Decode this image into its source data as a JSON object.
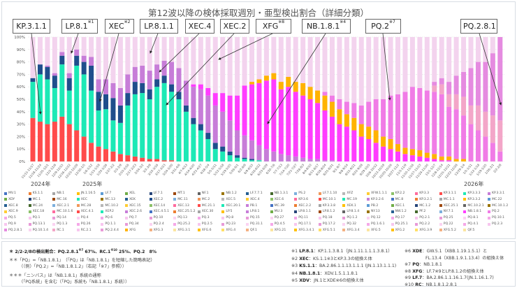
{
  "title": "第12波以降の検体採取週別・亜型検出割合（詳細分類）",
  "callouts": [
    {
      "label": "KP.3.1.1",
      "mark": ""
    },
    {
      "label": "LP.8.1",
      "mark": "※1"
    },
    {
      "label": "XEC",
      "mark": "※2"
    },
    {
      "label": "LP.8.1.1",
      "mark": ""
    },
    {
      "label": "XEC.4",
      "mark": ""
    },
    {
      "label": "XEC.2",
      "mark": ""
    },
    {
      "label": "XFG",
      "mark": "※8"
    },
    {
      "label": "NB.1.8.1",
      "mark": "※4"
    },
    {
      "label": "PQ.2",
      "mark": "※7"
    },
    {
      "label": "PQ.2.8.1",
      "mark": ""
    }
  ],
  "years": [
    "2024年",
    "2025年",
    "2026年"
  ],
  "chart_data": {
    "type": "bar",
    "stacked": true,
    "title": "第12波以降の検体採取週別・亜型検出割合（詳細分類）",
    "ylim": [
      0,
      100
    ],
    "yticks": [
      "0%",
      "10%",
      "20%",
      "30%",
      "40%",
      "50%",
      "60%",
      "70%",
      "80%",
      "90%",
      "100%"
    ],
    "grid": true,
    "legend": "bottom",
    "categories": [
      "11/11-11/17",
      "11/18-11/24",
      "11/25-12/1",
      "12/2-12/8",
      "12/9-12/15",
      "12/16-12/22",
      "12/23-12/29",
      "12/30-1/5",
      "1/6-1/12",
      "1/13-1/19",
      "1/20-1/26",
      "1/27-2/2",
      "2/3-2/9",
      "2/10-2/16",
      "2/17-2/23",
      "2/24-3/2",
      "3/3-3/9",
      "3/10-3/16",
      "3/17-3/23",
      "3/24-3/30",
      "3/31-4/6",
      "4/7-4/13",
      "4/14-4/20",
      "4/21-4/27",
      "4/28-5/4",
      "5/5-5/11",
      "5/12-5/18",
      "5/19-5/25",
      "5/26-6/1",
      "6/2-6/8",
      "6/9-6/15",
      "6/16-6/22",
      "6/23-6/29",
      "6/30-7/6",
      "7/7-7/13",
      "7/14-7/20",
      "7/21-7/27",
      "7/28-8/3",
      "8/4-8/10",
      "8/11-8/17",
      "8/18-8/24",
      "8/25-8/31",
      "9/1-9/7",
      "9/8-9/14",
      "9/15-9/21",
      "9/22-9/28",
      "9/29-10/5",
      "10/6-10/12",
      "10/13-10/19",
      "10/20-10/26",
      "10/27-11/2",
      "11/3-11/9",
      "11/10-11/16",
      "11/17-11/23",
      "11/24-11/30",
      "12/1-12/7",
      "12/8-12/14",
      "12/15-12/21",
      "12/22-12/28",
      "12/29-1/4",
      "1/5-1/11",
      "1/12-1/18",
      "1/19-1/25",
      "1/26-2/1",
      "2/2-2/8"
    ],
    "series": [
      {
        "name": "KP.3.1.1",
        "color": "#ff4b4b",
        "values": [
          35,
          32,
          30,
          32,
          36,
          30,
          25,
          20,
          15,
          12,
          10,
          8,
          6,
          5,
          4,
          3,
          2,
          2,
          1,
          1,
          0,
          0,
          0,
          0,
          0,
          0,
          0,
          0,
          0,
          0,
          0,
          0,
          0,
          0,
          0,
          0,
          0,
          0,
          0,
          0,
          0,
          0,
          0,
          0,
          0,
          0,
          0,
          0,
          0,
          0,
          0,
          0,
          0,
          0,
          0,
          0,
          0,
          0,
          0,
          0,
          0,
          0,
          0,
          0,
          0
        ]
      },
      {
        "name": "XEC",
        "color": "#1de9b6",
        "values": [
          29,
          38,
          36,
          27,
          42,
          27,
          52,
          50,
          42,
          29,
          32,
          25,
          25,
          40,
          50,
          52,
          48,
          58,
          62,
          55,
          50,
          40,
          30,
          25,
          18,
          10,
          8,
          5,
          3,
          2,
          1,
          1,
          0,
          0,
          0,
          0,
          0,
          0,
          0,
          0,
          0,
          0,
          0,
          0,
          0,
          0,
          0,
          0,
          0,
          0,
          0,
          0,
          0,
          0,
          0,
          0,
          0,
          0,
          0,
          0,
          0,
          0,
          0,
          0,
          0
        ]
      },
      {
        "name": "XEC.2",
        "color": "#1f4e8c",
        "values": [
          3,
          8,
          10,
          10,
          7,
          10,
          8,
          10,
          20,
          15,
          12,
          18,
          14,
          10,
          10,
          8,
          8,
          6,
          6,
          6,
          6,
          5,
          5,
          5,
          5,
          5,
          4,
          3,
          2,
          1,
          1,
          0,
          0,
          0,
          0,
          0,
          0,
          0,
          0,
          0,
          0,
          0,
          0,
          0,
          0,
          0,
          0,
          0,
          0,
          0,
          0,
          0,
          0,
          0,
          0,
          0,
          0,
          0,
          0,
          0,
          0,
          0,
          0,
          0,
          0
        ]
      },
      {
        "name": "LP.8.1",
        "color": "#c77dd8",
        "values": [
          0,
          0,
          1,
          2,
          3,
          4,
          5,
          5,
          7,
          10,
          12,
          12,
          14,
          15,
          12,
          14,
          15,
          12,
          12,
          18,
          19,
          20,
          25,
          28,
          30,
          30,
          28,
          25,
          20,
          18,
          15,
          12,
          10,
          8,
          6,
          5,
          4,
          3,
          2,
          2,
          1,
          1,
          0,
          0,
          0,
          0,
          0,
          0,
          0,
          0,
          0,
          0,
          0,
          0,
          0,
          0,
          0,
          0,
          0,
          0,
          0,
          0,
          0,
          0,
          0
        ]
      },
      {
        "name": "NB.1.8.1",
        "color": "#ff3dff",
        "values": [
          0,
          0,
          0,
          0,
          0,
          0,
          0,
          0,
          0,
          0,
          0,
          0,
          0,
          0,
          0,
          0,
          0,
          0,
          0,
          0,
          0,
          0,
          2,
          4,
          6,
          10,
          15,
          20,
          28,
          40,
          45,
          50,
          55,
          58,
          52,
          55,
          52,
          50,
          48,
          45,
          40,
          35,
          30,
          28,
          25,
          20,
          18,
          15,
          12,
          10,
          8,
          6,
          5,
          4,
          3,
          2,
          1,
          1,
          0,
          0,
          0,
          0,
          0,
          0,
          0
        ]
      },
      {
        "name": "XFG",
        "color": "#ffb300",
        "values": [
          0,
          0,
          0,
          0,
          0,
          0,
          0,
          0,
          0,
          0,
          0,
          0,
          0,
          0,
          0,
          0,
          0,
          0,
          0,
          0,
          0,
          0,
          0,
          0,
          0,
          0,
          0,
          0,
          0,
          0,
          2,
          3,
          4,
          5,
          6,
          8,
          8,
          10,
          10,
          10,
          12,
          12,
          12,
          10,
          10,
          10,
          10,
          10,
          8,
          8,
          6,
          5,
          5,
          5,
          4,
          4,
          3,
          3,
          2,
          2,
          0,
          0,
          0,
          0,
          0
        ]
      },
      {
        "name": "PQ.2",
        "color": "#f07ce6",
        "values": [
          0,
          0,
          0,
          0,
          0,
          0,
          0,
          0,
          0,
          0,
          0,
          0,
          0,
          0,
          0,
          0,
          0,
          0,
          0,
          0,
          0,
          0,
          0,
          0,
          0,
          0,
          0,
          0,
          0,
          0,
          0,
          0,
          0,
          0,
          0,
          0,
          0,
          0,
          0,
          0,
          3,
          5,
          8,
          10,
          12,
          15,
          20,
          25,
          30,
          35,
          40,
          45,
          50,
          50,
          50,
          50,
          50,
          40,
          40,
          35,
          30,
          25,
          20,
          15,
          8
        ]
      },
      {
        "name": "RC.1",
        "color": "#f3a6c8",
        "values": [
          0,
          0,
          0,
          0,
          0,
          0,
          0,
          0,
          0,
          0,
          0,
          0,
          0,
          0,
          0,
          0,
          0,
          0,
          0,
          0,
          0,
          0,
          0,
          0,
          0,
          0,
          0,
          0,
          0,
          0,
          0,
          0,
          0,
          0,
          0,
          0,
          0,
          0,
          0,
          0,
          0,
          0,
          0,
          0,
          0,
          0,
          0,
          0,
          0,
          0,
          0,
          0,
          0,
          0,
          0,
          5,
          8,
          10,
          12,
          15,
          15,
          20,
          20,
          22,
          25
        ]
      },
      {
        "name": "PQ.2.8.1",
        "color": "#e58be0",
        "values": [
          0,
          0,
          0,
          0,
          0,
          0,
          0,
          0,
          0,
          0,
          0,
          0,
          0,
          0,
          0,
          0,
          0,
          0,
          0,
          0,
          0,
          0,
          0,
          0,
          0,
          0,
          0,
          0,
          0,
          0,
          0,
          0,
          0,
          0,
          0,
          0,
          0,
          0,
          0,
          0,
          0,
          0,
          0,
          0,
          0,
          0,
          0,
          0,
          0,
          0,
          0,
          0,
          0,
          0,
          0,
          3,
          5,
          10,
          15,
          20,
          30,
          35,
          40,
          50,
          67
        ]
      }
    ],
    "other_color": "#f3d3ee"
  },
  "legend_rows": [
    [
      "MV.1",
      "KS.1.1",
      "NB.1",
      "JN.1.16.5",
      "LF.7",
      "XEL",
      "LF.7.1",
      "MT.1",
      "NF.1",
      "NB.1.2",
      "LF.7.7.1",
      "NB.1.3.1",
      "PS.2",
      "LF.7.1.10",
      "XFZ",
      "XFW.1.1.1",
      "KP.2.2",
      "KP.3.3",
      "KP.3.1.1",
      "KP.3.3.3",
      "KP.3.3.1"
    ],
    [
      "XDY",
      "MC.1",
      "MC.16",
      "XEC",
      "MC.13",
      "XEK",
      "XEC.2",
      "MC.11",
      "MC.2",
      "XEC.5",
      "XEC.4",
      "XEC.6",
      "KP.3.6",
      "MC.10.1",
      "MC.19",
      "KP.3.2.6",
      "MC.8",
      "KP.3.2.1",
      "MC.1.1",
      "KP.3.3.2",
      "MC.22"
    ],
    [
      "XEC.8",
      "MC.24",
      "XEC.2.1",
      "MC.28",
      "MC.10.2",
      "XEC.15",
      "XEC.14",
      "XEC.13",
      "MC.21.1",
      "XEC.20.1",
      "PB.1",
      "MC.39",
      "XEC.2.2",
      "KP.3.3.8",
      "XEK.1",
      "PB.2",
      "XEC.1",
      "MC.1.2",
      "XEC.25.1",
      "MC.10.2.1",
      "MC.10.1.2"
    ],
    [
      "XEC.9",
      "XEC.18",
      "MC.10.1.6",
      "XEC.4.1",
      "XEP.2",
      "XEC.2.6",
      "XEC.4.5.1",
      "XEC.25.1.2",
      "XEC.30",
      "LP.5",
      "LP.8.1",
      "MU.3",
      "LP.8.1.1",
      "LP.8.1.2",
      "LP.8.1.4",
      "NY.13",
      "NW.1.2",
      "PF.2",
      "NY.7.1",
      "NB.1.8.1",
      "PQ.2"
    ],
    [
      "PQ.5",
      "PQ.1",
      "PQ.14",
      "PQ.4",
      "PQ.6",
      "PQ.7",
      "PQ.10",
      "PQ.13",
      "PQ.3",
      "PQ.8",
      "PQ.15",
      "PQ.27",
      "PQ.11",
      "PQ.18",
      "PQ.1.2",
      "PQ.12",
      "PQ.17",
      "PQ.2.1",
      "PQ.25",
      "PQ.8.1",
      "PQ.10.1"
    ],
    [
      "PQ.9",
      "PQ.13.1",
      "PQ.1.3",
      "PQ.26",
      "PQ.1.1",
      "PQ.34",
      "PQ.2.4",
      "PQ.25.2",
      "PQ.2.5",
      "PQ.23",
      "PQ.31.1",
      "PQ.4.5",
      "PQ.17.1",
      "PQ.17.2",
      "PQ.32",
      "PQ.1.6.1",
      "PQ.25.1",
      "PQ.2.2",
      "PQ.22",
      "PQ.4.1",
      "PQ.2.3"
    ],
    [
      "PQ.2.8.1",
      "PQ.10.1.4",
      "RC.1",
      "RC.2.1",
      "PQ.2.4.4",
      "XFG",
      "XFG.3",
      "XFG.3.1",
      "XFG.6",
      "XFG.4",
      "QF.1",
      "XFG.21",
      "XFG.3.4.1",
      "XFG.5.1",
      "XFG.3.4",
      "XFG.5",
      "XFG.2",
      "XFG.3.9",
      "XFG.5.2",
      "QF.5"
    ]
  ],
  "legend_colors": [
    "#4472c4",
    "#ed7d31",
    "#a5a5a5",
    "#ffc000",
    "#5b9bd5",
    "#70ad47",
    "#264478",
    "#9e480e",
    "#636363",
    "#997300",
    "#255e91",
    "#43682b",
    "#7cafdd",
    "#f1975a",
    "#b7b7b7",
    "#ffcd33",
    "#8cc168",
    "#ff6b9e",
    "#ff4b4b",
    "#1de9b6",
    "#c77dd8"
  ],
  "notes_left": {
    "n1_pre": "＊ 2/2-2/8の検出割合：",
    "n1_a": "PQ.2.8.1",
    "n1_a_mark": "※7",
    "n1_a_val": "67%、",
    "n1_b": "RC.1",
    "n1_b_mark": "※10",
    "n1_b_val": "25%、",
    "n1_c": "PQ.2　8%",
    "n2": "＊＊「PQ」=「NB.1.8.1」　（「PQ」は「NB.1.8.1」を短縮した簡略表記）",
    "n3": "（（例）「PQ.2」=「NB.1.8.1.2」（右記「※7」参照））",
    "n4": "＊＊＊「ニンバス」は「NB.1.8.1」系統の通称",
    "n5": "（「PQ系統」を含む（「PQ」系統も「NB.1.8.1」系統））"
  },
  "notes_mid": [
    {
      "mark": "※1",
      "key": "LP.8.1",
      "text": "：KP.1.1.3.8.1（JN.1.11.1.1.1.3.8.1）"
    },
    {
      "mark": "※2",
      "key": "XEC",
      "text": "：KS.1.1※3とKP.3.3の組換え体"
    },
    {
      "mark": "※3",
      "key": "KS.1.1",
      "text": "：BA.2.86.1.1.13.1.1.1 (JN.1.13.1.1.1)"
    },
    {
      "mark": "※4",
      "key": "NB.1.8.1",
      "text": "：XDV.1.5.1.1.8.1"
    },
    {
      "mark": "※5",
      "key": "XDV",
      "text": "：JN.1とXDE※6の組換え体"
    }
  ],
  "notes_right": [
    {
      "mark": "※6",
      "key": "XDE",
      "text": "：GW.5.1（XBB.1.19.1.5.1）と"
    },
    {
      "mark": "",
      "key": "",
      "text": "FL.13.4（XBB.1.9.1.13.4）の組換え体"
    },
    {
      "mark": "※7",
      "key": "PQ",
      "text": "：NB.1.8.1"
    },
    {
      "mark": "※8",
      "key": "XFG",
      "text": "：LF.7※9とLP.8.1.2の組換え体"
    },
    {
      "mark": "※9",
      "key": "LF.7",
      "text": "：BA.2.86.1.1.16.1.7(JN.1.16.1.7)"
    },
    {
      "mark": "※10",
      "key": "RC",
      "text": "：NB.1.8.1.2.8.1"
    }
  ]
}
